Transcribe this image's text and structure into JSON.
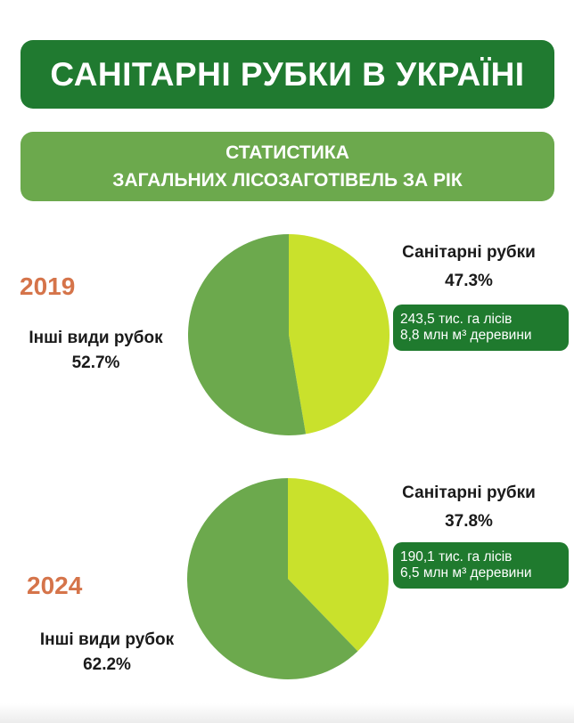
{
  "header": {
    "title": "САНІТАРНІ РУБКИ В УКРАЇНІ",
    "subtitle_line1": "СТАТИСТИКА",
    "subtitle_line2": "ЗАГАЛЬНИХ ЛІСОЗАГОТІВЕЛЬ ЗА РІК"
  },
  "colors": {
    "sanitary": "#c9e12c",
    "other": "#6ca94d",
    "title_bg": "#207a30",
    "year": "#d5744a"
  },
  "chart_data": [
    {
      "type": "pie",
      "title": "2019",
      "slices": [
        {
          "label": "Санітарні рубки",
          "value": 47.3,
          "display": "47.3%"
        },
        {
          "label": "Інші види рубок",
          "value": 52.7,
          "display": "52.7%"
        }
      ],
      "info_line1": "243,5 тис. га лісів",
      "info_line2": "8,8 млн м³ деревини"
    },
    {
      "type": "pie",
      "title": "2024",
      "slices": [
        {
          "label": "Санітарні рубки",
          "value": 37.8,
          "display": "37.8%"
        },
        {
          "label": "Інші види рубок",
          "value": 62.2,
          "display": "62.2%"
        }
      ],
      "info_line1": "190,1 тис. га лісів",
      "info_line2": "6,5 млн м³ деревини"
    }
  ]
}
